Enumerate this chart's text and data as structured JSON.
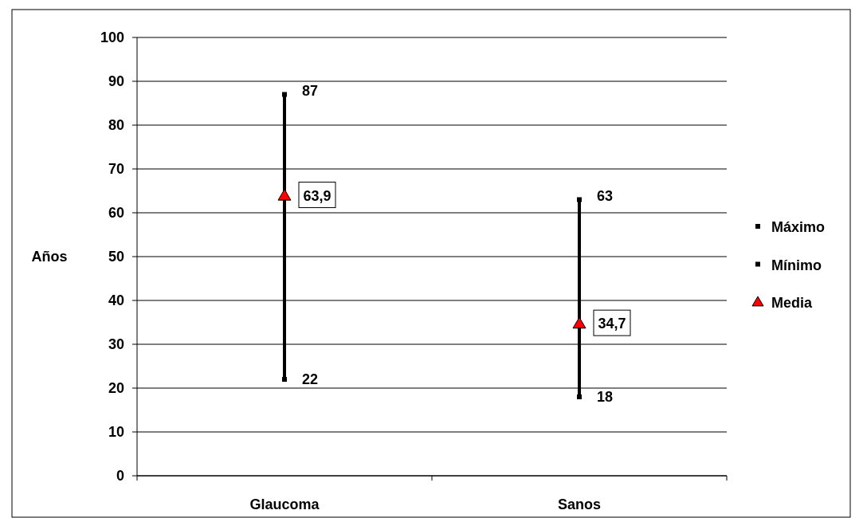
{
  "chart_data": {
    "type": "bar",
    "ylabel": "Años",
    "categories": [
      "Glaucoma",
      "Sanos"
    ],
    "ylim": [
      0,
      100
    ],
    "yticks": [
      0,
      10,
      20,
      30,
      40,
      50,
      60,
      70,
      80,
      90,
      100
    ],
    "grid": "y",
    "legend": "right",
    "series": [
      {
        "color": "#000000",
        "base": [
          22,
          18
        ],
        "values": [
          65,
          45
        ]
      },
      {
        "type": "scatter",
        "name": "Máximo",
        "marker": "square",
        "color": "#000000",
        "values": [
          87,
          63
        ],
        "value_labels": [
          "87",
          "63"
        ]
      },
      {
        "type": "scatter",
        "name": "Mínimo",
        "marker": "square",
        "color": "#000000",
        "values": [
          22,
          18
        ],
        "value_labels": [
          "22",
          "18"
        ]
      },
      {
        "type": "scatter",
        "name": "Media",
        "marker": "triangle",
        "color": "#ff0000",
        "values": [
          63.9,
          34.7
        ],
        "value_labels": [
          "63,9",
          "34,7"
        ]
      }
    ]
  }
}
